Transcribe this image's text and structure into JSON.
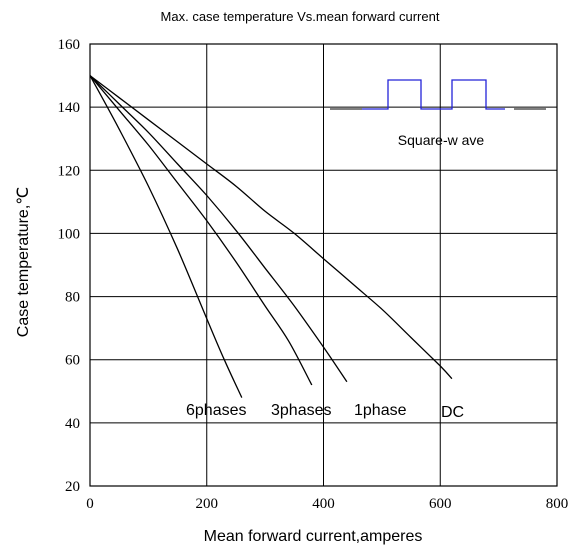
{
  "chart_data": {
    "type": "line",
    "title": "Max. case temperature  Vs.mean  forward  current",
    "xlabel": "Mean forward  current,amperes",
    "ylabel": "Case temperature,℃",
    "xlim": [
      0,
      800
    ],
    "ylim": [
      20,
      160
    ],
    "xticks": [
      0,
      200,
      400,
      600,
      800
    ],
    "yticks": [
      20,
      40,
      60,
      80,
      100,
      120,
      140,
      160
    ],
    "grid": true,
    "series": [
      {
        "name": "6phases",
        "x": [
          0,
          50,
          100,
          150,
          200,
          230,
          260
        ],
        "y": [
          150,
          133,
          115,
          95,
          73,
          60,
          48
        ]
      },
      {
        "name": "3phases",
        "x": [
          0,
          50,
          100,
          150,
          200,
          250,
          300,
          340,
          380
        ],
        "y": [
          150,
          139,
          128,
          116,
          104,
          91,
          77,
          66,
          52
        ]
      },
      {
        "name": "1phase",
        "x": [
          0,
          50,
          100,
          150,
          200,
          250,
          300,
          350,
          400,
          440
        ],
        "y": [
          150,
          141,
          132,
          122,
          112,
          101,
          89,
          77,
          64,
          53
        ]
      },
      {
        "name": "DC",
        "x": [
          0,
          50,
          100,
          150,
          200,
          250,
          300,
          350,
          400,
          450,
          500,
          550,
          600,
          620
        ],
        "y": [
          150,
          143,
          136,
          129,
          122,
          115,
          107,
          100,
          92,
          84,
          76,
          67,
          58,
          54
        ]
      }
    ],
    "annotations": {
      "curve_labels": [
        "6phases",
        "3phases",
        "1phase",
        "DC"
      ],
      "waveform_label": "Square-w ave"
    }
  }
}
